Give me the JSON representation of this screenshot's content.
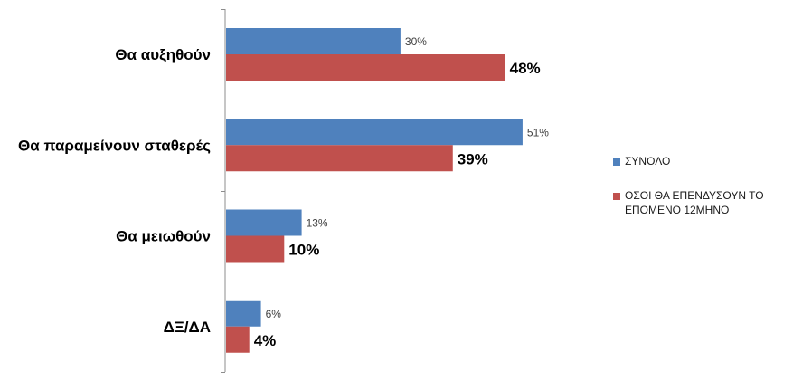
{
  "chart_data": {
    "type": "bar",
    "orientation": "horizontal",
    "categories": [
      "Θα αυξηθούν",
      "Θα παραμείνουν σταθερές",
      "Θα μειωθούν",
      "ΔΞ/ΔΑ"
    ],
    "series": [
      {
        "name": "ΣΥΝΟΛΟ",
        "values": [
          30,
          51,
          13,
          6
        ],
        "labels": [
          "30%",
          "51%",
          "13%",
          "6%"
        ],
        "color": "#4F81BD"
      },
      {
        "name": "ΟΣΟΙ ΘΑ ΕΠΕΝΔΥΣΟΥΝ ΤΟ ΕΠΟΜΕΝΟ 12ΜΗΝΟ",
        "values": [
          48,
          39,
          10,
          4
        ],
        "labels": [
          "48%",
          "39%",
          "10%",
          "4%"
        ],
        "color": "#C0504D"
      }
    ],
    "xlim": [
      0,
      100
    ],
    "grid": false,
    "legend_position": "right"
  }
}
